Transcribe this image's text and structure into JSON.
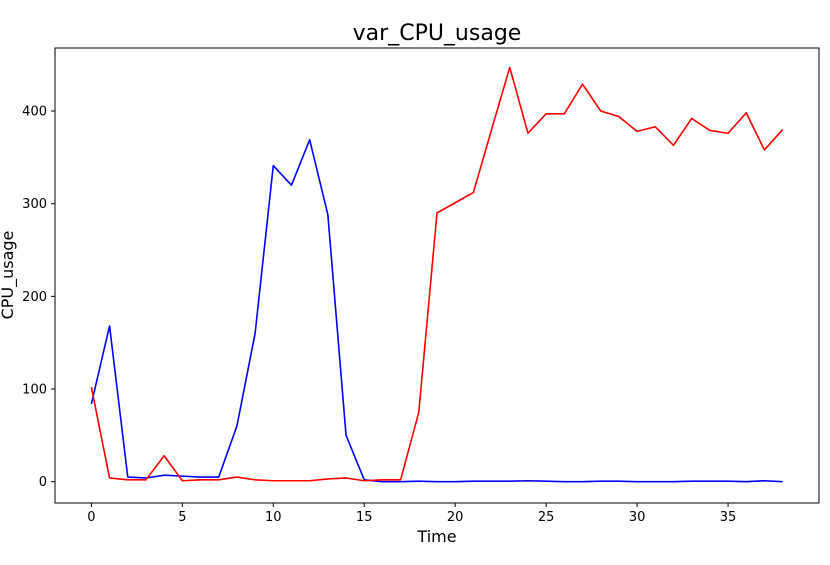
{
  "chart_data": {
    "type": "line",
    "title": "var_CPU_usage",
    "xlabel": "Time",
    "ylabel": "CPU_usage",
    "xlim": [
      -2.0,
      40.0
    ],
    "ylim": [
      -23,
      468
    ],
    "xticks": [
      0,
      5,
      10,
      15,
      20,
      25,
      30,
      35
    ],
    "yticks": [
      0,
      100,
      200,
      300,
      400
    ],
    "grid": false,
    "x": [
      0,
      1,
      2,
      3,
      4,
      5,
      6,
      7,
      8,
      9,
      10,
      11,
      12,
      13,
      14,
      15,
      16,
      17,
      18,
      19,
      20,
      21,
      22,
      23,
      24,
      25,
      26,
      27,
      28,
      29,
      30,
      31,
      32,
      33,
      34,
      35,
      36,
      37,
      38
    ],
    "series": [
      {
        "color": "#0000ff",
        "values": [
          84,
          168,
          5,
          4,
          7,
          6,
          5,
          5,
          60,
          160,
          341,
          320,
          369,
          288,
          50,
          2,
          0,
          0,
          0.5,
          0,
          0,
          0.5,
          0.5,
          0.5,
          1,
          0.5,
          0,
          0,
          0.5,
          0.5,
          0,
          0,
          0,
          0.5,
          0.5,
          0.5,
          0,
          1,
          0
        ]
      },
      {
        "color": "#ff0000",
        "values": [
          102,
          4,
          2,
          2,
          28,
          1,
          2,
          2,
          5,
          2,
          1,
          1,
          1,
          3,
          4,
          1,
          2,
          2,
          75,
          290,
          301,
          312,
          380,
          447,
          376,
          397,
          397,
          429,
          400,
          394,
          378,
          383,
          363,
          392,
          379,
          376,
          398,
          358,
          380
        ]
      }
    ]
  }
}
